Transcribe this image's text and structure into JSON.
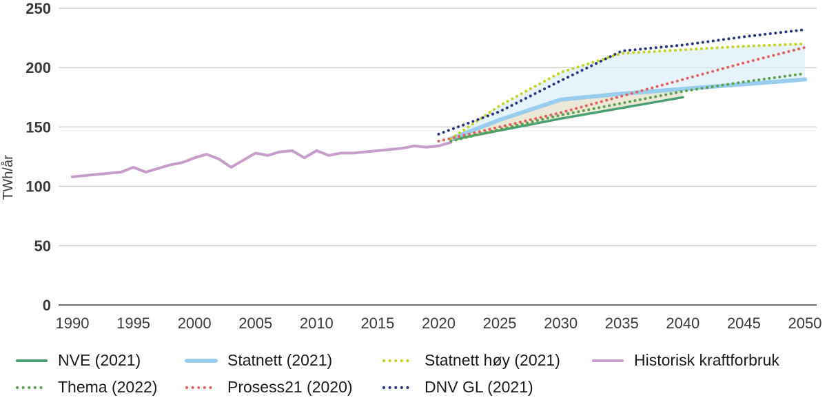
{
  "chart_data": {
    "type": "line",
    "title": "",
    "xlabel": "",
    "ylabel": "TWh/år",
    "ylim": [
      0,
      250
    ],
    "yticks": [
      0,
      50,
      100,
      150,
      200,
      250
    ],
    "xlim": [
      1990,
      2050
    ],
    "xticks": [
      1990,
      1995,
      2000,
      2005,
      2010,
      2015,
      2020,
      2025,
      2030,
      2035,
      2040,
      2045,
      2050
    ],
    "grid": "horizontal",
    "legend_position": "bottom",
    "series": [
      {
        "name": "Historisk kraftforbruk",
        "color": "#c79ec9",
        "style": "solid",
        "width": 4,
        "x": [
          1990,
          1991,
          1992,
          1993,
          1994,
          1995,
          1996,
          1997,
          1998,
          1999,
          2000,
          2001,
          2002,
          2003,
          2004,
          2005,
          2006,
          2007,
          2008,
          2009,
          2010,
          2011,
          2012,
          2013,
          2014,
          2015,
          2016,
          2017,
          2018,
          2019,
          2020,
          2021
        ],
        "values": [
          108,
          109,
          110,
          111,
          112,
          116,
          112,
          115,
          118,
          120,
          124,
          127,
          123,
          116,
          122,
          128,
          126,
          129,
          130,
          124,
          130,
          126,
          128,
          128,
          129,
          130,
          131,
          132,
          134,
          133,
          134,
          137
        ]
      },
      {
        "name": "NVE (2021)",
        "color": "#4aa073",
        "style": "solid",
        "width": 3.5,
        "x": [
          2021,
          2025,
          2030,
          2035,
          2040
        ],
        "values": [
          139,
          147,
          157,
          166,
          175
        ]
      },
      {
        "name": "Statnett (2021)",
        "color": "#99cdee",
        "style": "solid",
        "width": 6,
        "x": [
          2021,
          2025,
          2030,
          2035,
          2040,
          2045,
          2050
        ],
        "values": [
          140,
          156,
          173,
          178,
          182,
          186,
          190
        ]
      },
      {
        "name": "Statnett høy (2021)",
        "color": "#c6d31e",
        "style": "dotted",
        "width": 4,
        "x": [
          2021,
          2025,
          2030,
          2035,
          2040,
          2045,
          2050
        ],
        "values": [
          140,
          168,
          196,
          212,
          215,
          218,
          220
        ]
      },
      {
        "name": "Thema (2022)",
        "color": "#5aa14e",
        "style": "dotted",
        "width": 4,
        "x": [
          2021,
          2025,
          2030,
          2035,
          2040,
          2045,
          2050
        ],
        "values": [
          138,
          148,
          160,
          170,
          180,
          188,
          195
        ]
      },
      {
        "name": "Prosess21 (2020)",
        "color": "#e2615e",
        "style": "dotted",
        "width": 4,
        "x": [
          2020,
          2025,
          2030,
          2035,
          2040,
          2045,
          2050
        ],
        "values": [
          138,
          150,
          162,
          176,
          190,
          204,
          217
        ]
      },
      {
        "name": "DNV GL (2021)",
        "color": "#283583",
        "style": "dotted",
        "width": 4,
        "x": [
          2020,
          2025,
          2030,
          2035,
          2040,
          2045,
          2050
        ],
        "values": [
          144,
          163,
          189,
          214,
          219,
          226,
          232
        ]
      }
    ],
    "areas": [
      {
        "between": [
          "Statnett høy (2021)",
          "Statnett (2021)"
        ],
        "color": "#daedf8",
        "opacity": 0.65
      },
      {
        "between": [
          "Statnett (2021)",
          "NVE (2021)"
        ],
        "color": "#e7e2cd",
        "opacity": 0.8
      }
    ]
  },
  "legend": {
    "rows": [
      [
        "NVE (2021)",
        "Statnett (2021)",
        "Statnett høy (2021)",
        "Historisk kraftforbruk"
      ],
      [
        "Thema (2022)",
        "Prosess21 (2020)",
        "DNV GL (2021)"
      ]
    ]
  }
}
